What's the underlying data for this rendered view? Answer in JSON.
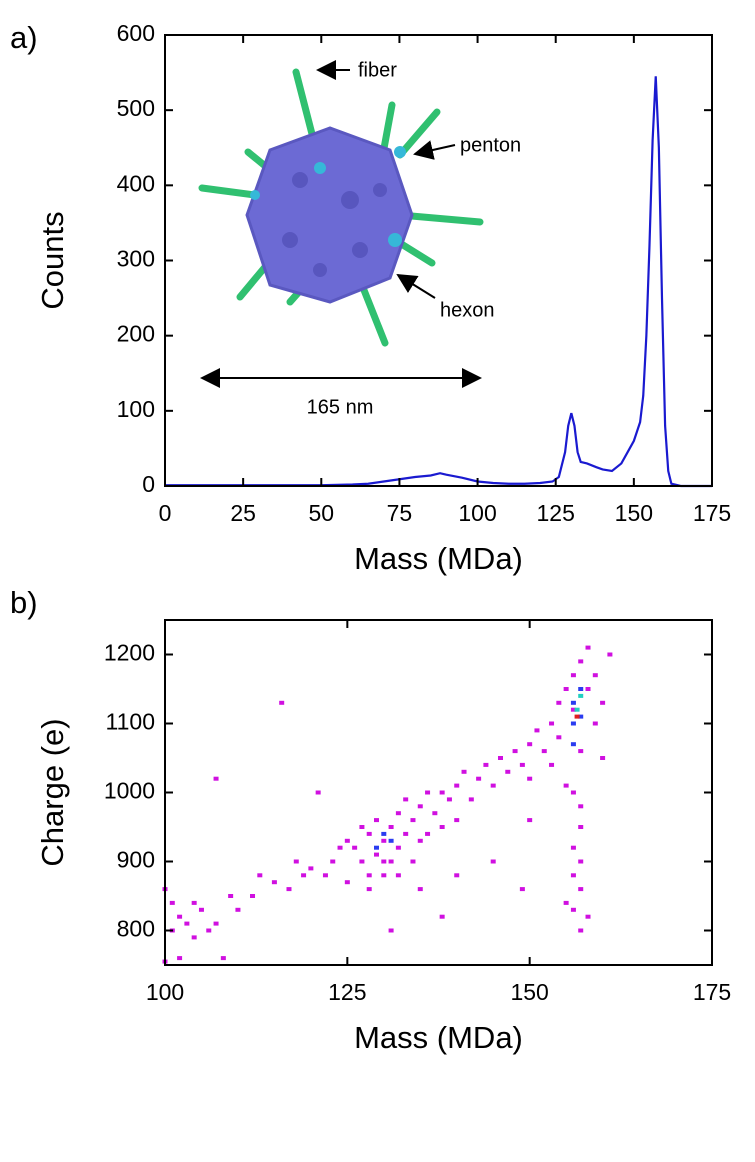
{
  "chart_data": [
    {
      "type": "line",
      "panel_label": "a)",
      "xlabel": "Mass (MDa)",
      "ylabel": "Counts",
      "annotations": [
        "fiber",
        "penton",
        "hexon",
        "165 nm"
      ],
      "xlim": [
        0,
        175
      ],
      "ylim": [
        0,
        600
      ],
      "xticks": [
        0,
        25,
        50,
        75,
        100,
        125,
        150,
        175
      ],
      "yticks": [
        0,
        100,
        200,
        300,
        400,
        500,
        600
      ],
      "x": [
        0,
        10,
        20,
        30,
        40,
        50,
        60,
        65,
        70,
        75,
        80,
        85,
        88,
        90,
        95,
        100,
        105,
        110,
        115,
        120,
        124,
        126,
        128,
        129,
        130,
        131,
        132,
        133,
        135,
        138,
        140,
        143,
        146,
        148,
        150,
        152,
        153,
        154,
        155,
        156,
        157,
        158,
        159,
        160,
        161,
        162,
        165,
        175
      ],
      "series": [
        {
          "color": "#1a1ad0",
          "values": [
            1,
            1,
            1,
            1,
            1,
            1,
            2,
            3,
            6,
            9,
            12,
            14,
            17,
            15,
            11,
            6,
            4,
            3,
            3,
            4,
            6,
            12,
            45,
            80,
            97,
            80,
            45,
            32,
            30,
            25,
            22,
            20,
            30,
            45,
            60,
            85,
            120,
            200,
            320,
            460,
            545,
            450,
            250,
            80,
            20,
            3,
            0,
            0
          ]
        }
      ]
    },
    {
      "type": "scatter",
      "panel_label": "b)",
      "xlabel": "Mass (MDa)",
      "ylabel": "Charge (e)",
      "xlim": [
        100,
        175
      ],
      "ylim": [
        750,
        1250
      ],
      "xticks": [
        100,
        125,
        150,
        175
      ],
      "yticks": [
        800,
        900,
        1000,
        1100,
        1200
      ],
      "series": [
        {
          "color": "#d010e0",
          "x": [
            100,
            101,
            101,
            102,
            103,
            104,
            104,
            105,
            106,
            107,
            108,
            109,
            100,
            102,
            107,
            110,
            112,
            113,
            115,
            116,
            117,
            118,
            119,
            120,
            121,
            122,
            123,
            124,
            125,
            125,
            126,
            127,
            127,
            128,
            128,
            129,
            129,
            130,
            130,
            131,
            131,
            132,
            132,
            133,
            133,
            134,
            135,
            135,
            136,
            137,
            138,
            138,
            139,
            140,
            140,
            141,
            142,
            143,
            144,
            145,
            146,
            147,
            148,
            149,
            150,
            150,
            151,
            152,
            153,
            153,
            154,
            154,
            155,
            155,
            156,
            156,
            157,
            157,
            158,
            158,
            159,
            159,
            160,
            160,
            161,
            156,
            157,
            157,
            156,
            157,
            156,
            157,
            156,
            157,
            158,
            155,
            149,
            150,
            145,
            140,
            135,
            131,
            138,
            128,
            130,
            132,
            134,
            136
          ],
          "values": [
            860,
            840,
            800,
            820,
            810,
            790,
            840,
            830,
            800,
            810,
            760,
            850,
            755,
            760,
            1020,
            830,
            850,
            880,
            870,
            1130,
            860,
            900,
            880,
            890,
            1000,
            880,
            900,
            920,
            930,
            870,
            920,
            900,
            950,
            880,
            940,
            910,
            960,
            930,
            880,
            950,
            900,
            970,
            920,
            940,
            990,
            960,
            980,
            930,
            1000,
            970,
            1000,
            950,
            990,
            1010,
            960,
            1030,
            990,
            1020,
            1040,
            1010,
            1050,
            1030,
            1060,
            1040,
            1070,
            1020,
            1090,
            1060,
            1100,
            1040,
            1130,
            1080,
            1150,
            1010,
            1170,
            1120,
            1190,
            1060,
            1150,
            1210,
            1100,
            1170,
            1050,
            1130,
            1200,
            1000,
            980,
            950,
            920,
            900,
            880,
            860,
            830,
            800,
            820,
            840,
            860,
            960,
            900,
            880,
            860,
            800,
            820,
            860,
            900,
            880,
            900,
            940
          ]
        },
        {
          "color": "#2a3cf0",
          "x": [
            129,
            130,
            131,
            156,
            156,
            157,
            157,
            156
          ],
          "values": [
            920,
            940,
            930,
            1100,
            1130,
            1110,
            1150,
            1070
          ]
        },
        {
          "color": "#20d0c0",
          "x": [
            156.5,
            157
          ],
          "values": [
            1120,
            1140
          ]
        },
        {
          "color": "#e02020",
          "x": [
            156.5
          ],
          "values": [
            1110
          ]
        }
      ]
    }
  ]
}
